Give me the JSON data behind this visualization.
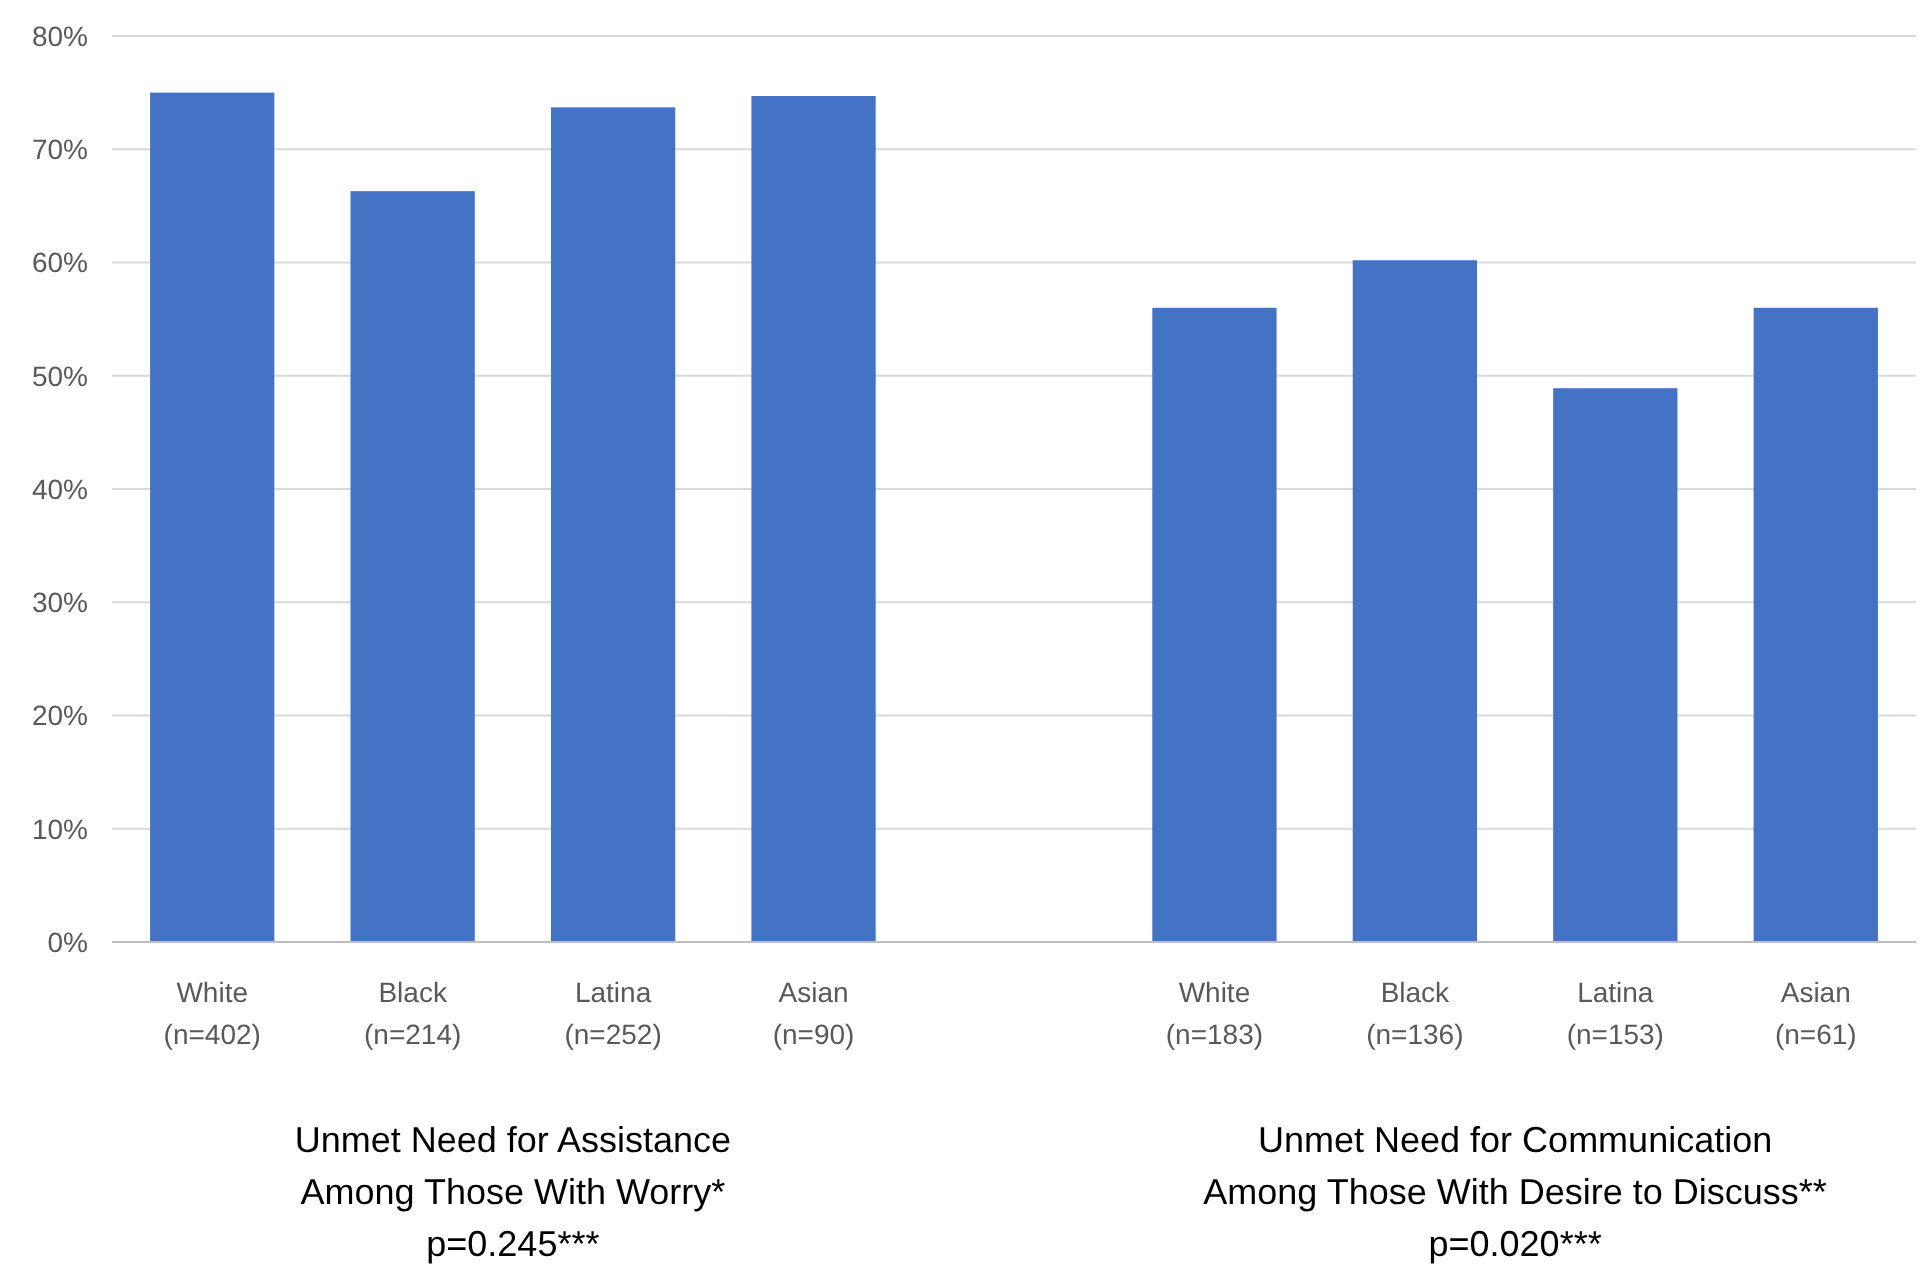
{
  "chart_data": {
    "type": "bar",
    "categories": [
      "White\n(n=402)",
      "Black\n(n=214)",
      "Latina\n(n=252)",
      "Asian\n(n=90)",
      null,
      "White\n(n=183)",
      "Black\n(n=136)",
      "Latina\n(n=153)",
      "Asian\n(n=61)"
    ],
    "values": [
      75,
      66.3,
      73.7,
      74.7,
      null,
      56,
      60.2,
      48.9,
      56
    ],
    "color": "#4472c4",
    "ylim": [
      0,
      80
    ],
    "yticks": [
      {
        "value": 0,
        "label": "0%"
      },
      {
        "value": 10,
        "label": "10%"
      },
      {
        "value": 20,
        "label": "20%"
      },
      {
        "value": 30,
        "label": "30%"
      },
      {
        "value": 40,
        "label": "40%"
      },
      {
        "value": 50,
        "label": "50%"
      },
      {
        "value": 60,
        "label": "60%"
      },
      {
        "value": 70,
        "label": "70%"
      },
      {
        "value": 80,
        "label": "80%"
      }
    ],
    "grid": "y",
    "annotations": [
      "Unmet Need for Assistance\nAmong Those With Worry*\np=0.245***",
      "Unmet Need for Communication\nAmong Those With Desire to Discuss**\np=0.020***"
    ]
  }
}
